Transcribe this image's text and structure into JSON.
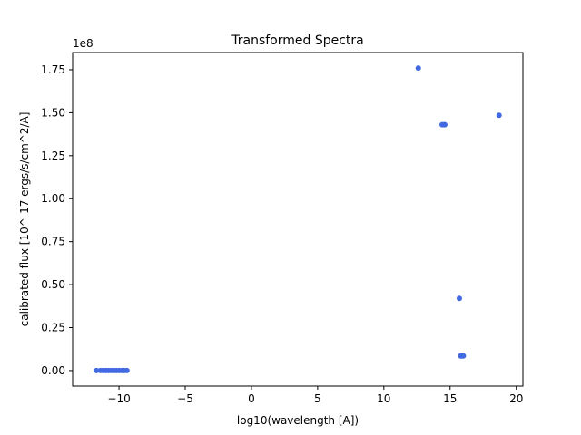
{
  "chart_data": {
    "type": "scatter",
    "title": "Transformed Spectra",
    "xlabel": "log10(wavelength [A])",
    "ylabel": "calibrated flux [10^-17 ergs/s/cm^2/A]",
    "y_offset_text": "1e8",
    "xlim": [
      -13.5,
      20.5
    ],
    "ylim": [
      -9000000,
      185000000
    ],
    "x_ticks": [
      -10,
      -5,
      0,
      5,
      10,
      15,
      20
    ],
    "x_tick_labels": [
      "−10",
      "−5",
      "0",
      "5",
      "10",
      "15",
      "20"
    ],
    "y_ticks": [
      0,
      25000000,
      50000000,
      75000000,
      100000000,
      125000000,
      150000000,
      175000000
    ],
    "y_tick_labels": [
      "0.00",
      "0.25",
      "0.50",
      "0.75",
      "1.00",
      "1.25",
      "1.50",
      "1.75"
    ],
    "grid": false,
    "marker_color": "#4169e1",
    "series": [
      {
        "points": [
          {
            "x": -11.7,
            "y": 0
          },
          {
            "x": -11.4,
            "y": 0
          },
          {
            "x": -11.2,
            "y": 0
          },
          {
            "x": -11.0,
            "y": 0
          },
          {
            "x": -10.8,
            "y": 0
          },
          {
            "x": -10.6,
            "y": 0
          },
          {
            "x": -10.4,
            "y": 0
          },
          {
            "x": -10.2,
            "y": 0
          },
          {
            "x": -10.0,
            "y": 0
          },
          {
            "x": -9.8,
            "y": 0
          },
          {
            "x": -9.6,
            "y": 0
          },
          {
            "x": -9.4,
            "y": 0
          },
          {
            "x": 12.6,
            "y": 176000000
          },
          {
            "x": 14.4,
            "y": 143000000
          },
          {
            "x": 14.5,
            "y": 143000000
          },
          {
            "x": 14.6,
            "y": 143000000
          },
          {
            "x": 18.7,
            "y": 148500000
          },
          {
            "x": 15.7,
            "y": 42000000
          },
          {
            "x": 15.8,
            "y": 8500000
          },
          {
            "x": 15.9,
            "y": 8500000
          },
          {
            "x": 16.0,
            "y": 8500000
          }
        ]
      }
    ]
  }
}
